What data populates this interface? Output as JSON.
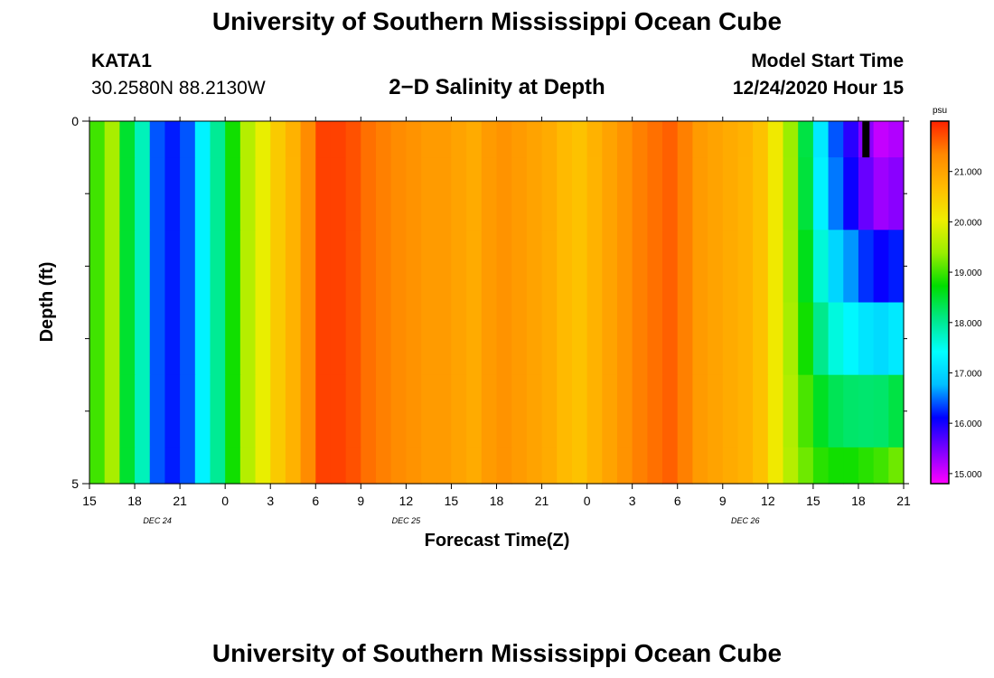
{
  "header": {
    "title_top": "University of Southern Mississippi Ocean Cube",
    "title_bottom": "University of Southern Mississippi Ocean Cube",
    "station": "KATA1",
    "coordinates": "30.2580N 88.2130W",
    "plot_title": "2−D Salinity at Depth",
    "start_label": "Model Start Time",
    "start_time": "12/24/2020 Hour 15"
  },
  "chart_data": {
    "type": "heatmap",
    "title": "2-D Salinity at Depth",
    "xlabel": "Forecast Time(Z)",
    "ylabel": "Depth (ft)",
    "x_tick_labels": [
      "15",
      "18",
      "21",
      "0",
      "3",
      "6",
      "9",
      "12",
      "15",
      "18",
      "21",
      "0",
      "3",
      "6",
      "9",
      "12",
      "15",
      "18",
      "21"
    ],
    "date_labels": [
      {
        "text": "DEC 24",
        "hour_index": 4.5
      },
      {
        "text": "DEC 25",
        "hour_index": 21
      },
      {
        "text": "DEC 26",
        "hour_index": 43.5
      }
    ],
    "x_range_hours": [
      0,
      54
    ],
    "y_tick_labels": [
      "0",
      "5"
    ],
    "y_range": [
      0,
      5
    ],
    "y_minor_ticks": [
      1,
      2,
      3,
      4
    ],
    "depth_levels": [
      0,
      0.5,
      1.5,
      2.5,
      3.5,
      4.5
    ],
    "colorbar": {
      "unit": "psu",
      "min": 14.8,
      "max": 22.0,
      "tick_values": [
        15,
        16,
        17,
        18,
        19,
        20,
        21
      ],
      "tick_labels": [
        "15.000",
        "16.000",
        "17.000",
        "18.000",
        "19.000",
        "20.000",
        "21.000"
      ],
      "colors": [
        "#ff00ff",
        "#7f00ff",
        "#0000ff",
        "#00bfff",
        "#00ffff",
        "#00e888",
        "#00dd00",
        "#99ee00",
        "#eeee00",
        "#ffbb00",
        "#ff8800",
        "#ff2200"
      ]
    },
    "surface_profile_psu": [
      19.0,
      19.5,
      18.5,
      17.8,
      16.4,
      16.2,
      16.4,
      17.3,
      18.0,
      18.8,
      19.6,
      20.0,
      20.5,
      20.8,
      21.3,
      21.8,
      21.8,
      21.7,
      21.5,
      21.4,
      21.3,
      21.2,
      21.1,
      21.1,
      21.0,
      20.9,
      21.1,
      21.2,
      21.1,
      21.0,
      20.9,
      20.7,
      20.6,
      20.8,
      21.0,
      21.2,
      21.4,
      21.5,
      21.6,
      21.4,
      21.1,
      21.0,
      20.9,
      20.8,
      20.6,
      20.1,
      19.4,
      18.4,
      17.2,
      16.4,
      15.9,
      15.4,
      15.1,
      15.2
    ],
    "deep_profile_psu": [
      19.0,
      19.5,
      18.5,
      17.8,
      16.4,
      16.2,
      16.4,
      17.3,
      18.0,
      18.8,
      19.6,
      20.0,
      20.5,
      20.8,
      21.3,
      21.8,
      21.8,
      21.7,
      21.5,
      21.4,
      21.3,
      21.2,
      21.1,
      21.1,
      21.0,
      20.9,
      21.1,
      21.2,
      21.1,
      21.0,
      20.9,
      20.7,
      20.6,
      20.8,
      21.0,
      21.2,
      21.4,
      21.5,
      21.6,
      21.4,
      21.1,
      21.0,
      20.9,
      20.8,
      20.6,
      20.1,
      19.6,
      19.2,
      18.9,
      18.8,
      18.8,
      18.9,
      19.0,
      19.2
    ],
    "depth_weights": [
      0.0,
      0.05,
      0.25,
      0.5,
      0.8,
      1.0
    ],
    "annotation": {
      "text": "",
      "hour_index": 51.5,
      "depth_top": 0,
      "depth_bottom": 0.5
    }
  },
  "colors": {
    "background": "#ffffff",
    "axis": "#000000"
  }
}
